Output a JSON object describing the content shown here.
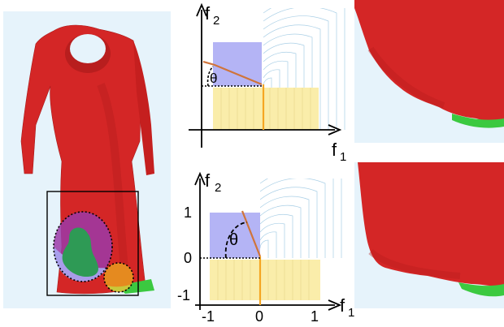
{
  "figure": {
    "top_plot": {
      "axis_x_label": "f",
      "axis_x_sub": "1",
      "axis_y_label": "f",
      "axis_y_sub": "2",
      "angle_label": "θ"
    },
    "bottom_plot": {
      "axis_x_label": "f",
      "axis_x_sub": "1",
      "axis_y_label": "f",
      "axis_y_sub": "2",
      "angle_label": "θ",
      "x_ticks": [
        "-1",
        "0",
        "1"
      ],
      "y_ticks": [
        "1",
        "0",
        "-1"
      ]
    }
  },
  "colors": {
    "panel_background": "#e6f3fb",
    "dress": "#d42626",
    "green_patch": "#2e9a55",
    "lavender": "#b4b4f5",
    "yellow": "#faedaa",
    "orange_line": "#f5a623",
    "brown_line": "#d0743a",
    "contour": "#a9cfe6"
  }
}
